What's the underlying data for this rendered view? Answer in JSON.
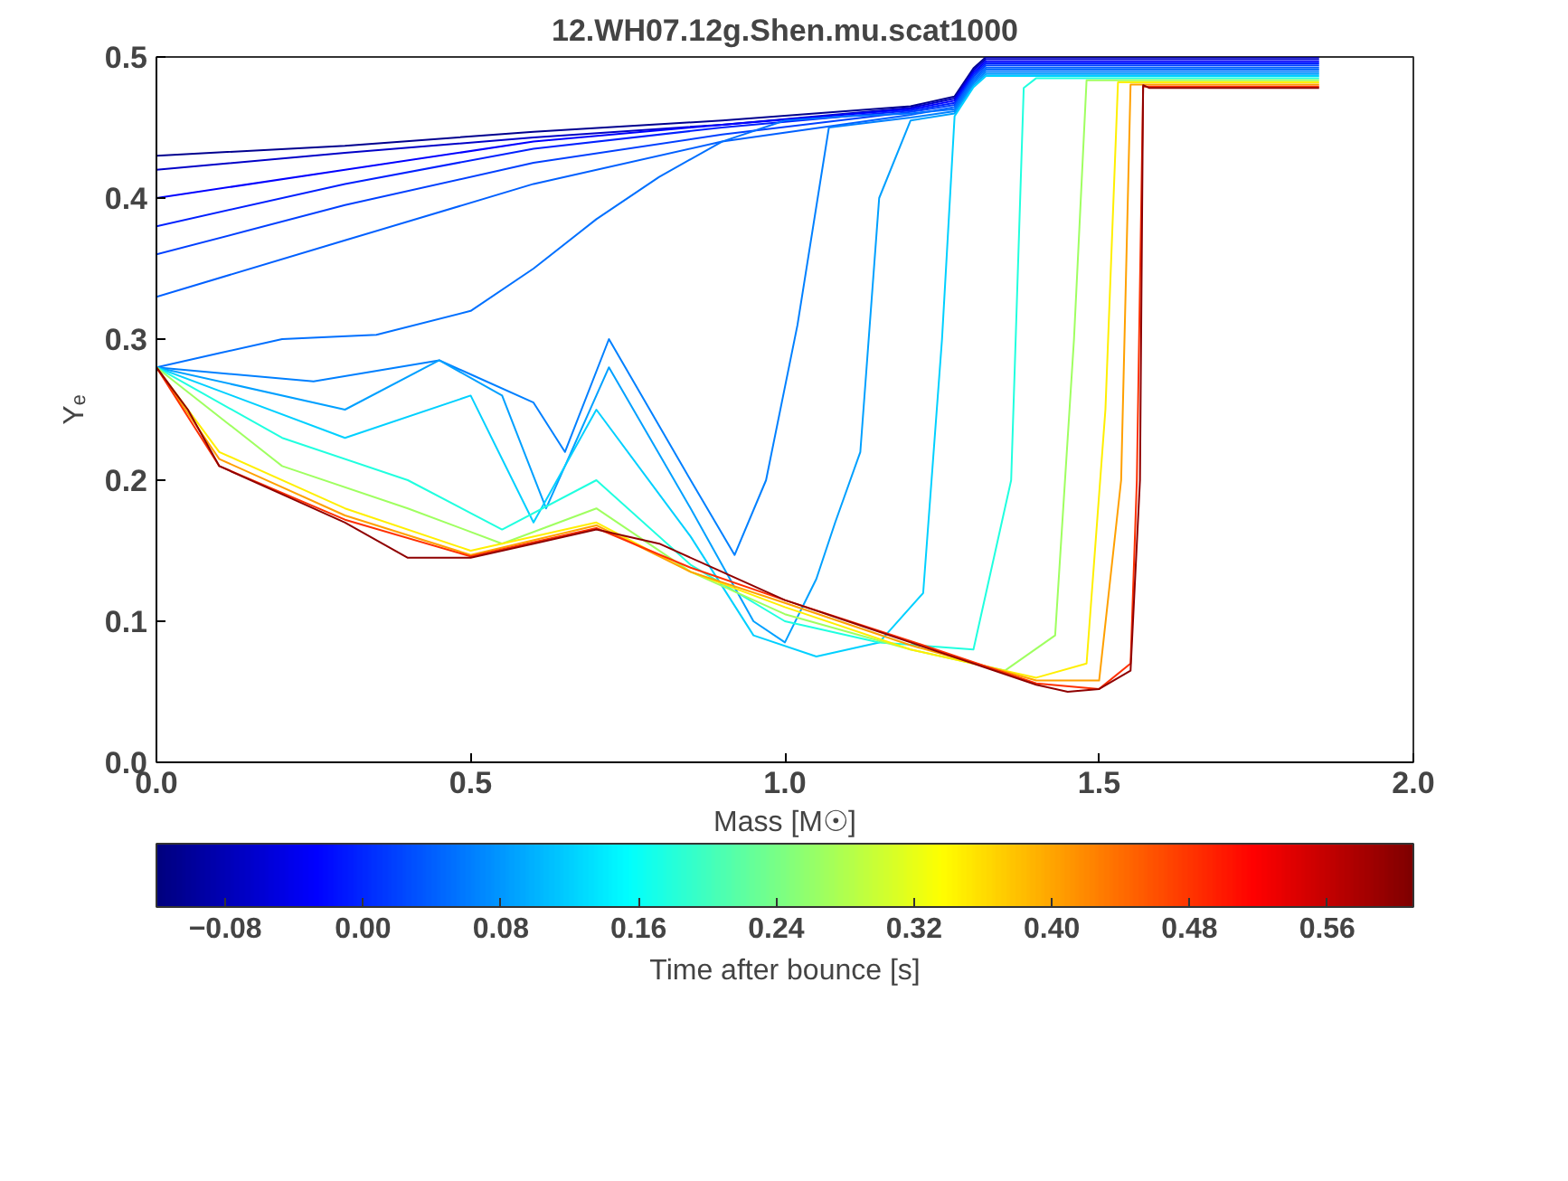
{
  "chart_data": {
    "type": "line",
    "title": "12.WH07.12g.Shen.mu.scat1000",
    "xlabel": "Mass [M☉]",
    "ylabel": "Yₑ",
    "clabel": "Time after bounce [s]",
    "xlim": [
      0,
      2
    ],
    "ylim": [
      0,
      0.5
    ],
    "xticks": [
      {
        "value": 0,
        "label": "0.0"
      },
      {
        "value": 0.5,
        "label": "0.5"
      },
      {
        "value": 1,
        "label": "1.0"
      },
      {
        "value": 1.5,
        "label": "1.5"
      },
      {
        "value": 2,
        "label": "2.0"
      }
    ],
    "yticks": [
      {
        "value": 0,
        "label": "0.0"
      },
      {
        "value": 0.1,
        "label": "0.1"
      },
      {
        "value": 0.2,
        "label": "0.2"
      },
      {
        "value": 0.3,
        "label": "0.3"
      },
      {
        "value": 0.4,
        "label": "0.4"
      },
      {
        "value": 0.5,
        "label": "0.5"
      }
    ],
    "clim": [
      -0.12,
      0.61
    ],
    "cticks": [
      {
        "value": -0.08,
        "label": "−0.08"
      },
      {
        "value": 0,
        "label": "0.00"
      },
      {
        "value": 0.08,
        "label": "0.08"
      },
      {
        "value": 0.16,
        "label": "0.16"
      },
      {
        "value": 0.24,
        "label": "0.24"
      },
      {
        "value": 0.32,
        "label": "0.32"
      },
      {
        "value": 0.4,
        "label": "0.40"
      },
      {
        "value": 0.48,
        "label": "0.48"
      },
      {
        "value": 0.56,
        "label": "0.56"
      }
    ],
    "line_style": "solid",
    "series": [
      {
        "color": "#00008f",
        "x": [
          0,
          0.3,
          0.6,
          0.9,
          1.2,
          1.27,
          1.3,
          1.32,
          1.85
        ],
        "values": [
          0.43,
          0.437,
          0.447,
          0.455,
          0.465,
          0.472,
          0.492,
          0.5,
          0.5
        ]
      },
      {
        "color": "#0000c8",
        "x": [
          0,
          0.3,
          0.6,
          0.9,
          1.2,
          1.27,
          1.3,
          1.32,
          1.85
        ],
        "values": [
          0.42,
          0.432,
          0.443,
          0.452,
          0.464,
          0.4705,
          0.4905,
          0.4985,
          0.4985
        ]
      },
      {
        "color": "#0000ff",
        "x": [
          0,
          0.3,
          0.6,
          0.9,
          1.2,
          1.27,
          1.3,
          1.32,
          1.85
        ],
        "values": [
          0.4,
          0.42,
          0.44,
          0.452,
          0.463,
          0.469,
          0.489,
          0.497,
          0.497
        ]
      },
      {
        "color": "#0020ff",
        "x": [
          0,
          0.3,
          0.6,
          0.9,
          1.2,
          1.27,
          1.3,
          1.32,
          1.85
        ],
        "values": [
          0.38,
          0.41,
          0.435,
          0.45,
          0.462,
          0.4675,
          0.4875,
          0.4955,
          0.4955
        ]
      },
      {
        "color": "#0040ff",
        "x": [
          0,
          0.3,
          0.6,
          0.9,
          1.2,
          1.27,
          1.3,
          1.32,
          1.85
        ],
        "values": [
          0.36,
          0.395,
          0.425,
          0.445,
          0.461,
          0.466,
          0.486,
          0.494,
          0.494
        ]
      },
      {
        "color": "#0060ff",
        "x": [
          0,
          0.3,
          0.6,
          0.9,
          1.2,
          1.27,
          1.3,
          1.32,
          1.85
        ],
        "values": [
          0.33,
          0.37,
          0.41,
          0.44,
          0.459,
          0.4645,
          0.4845,
          0.4925,
          0.4925
        ]
      },
      {
        "color": "#0070ff",
        "x": [
          0,
          0.1,
          0.2,
          0.35,
          0.5,
          0.6,
          0.7,
          0.8,
          0.9,
          1.0,
          1.1,
          1.2,
          1.27,
          1.3,
          1.32,
          1.85
        ],
        "values": [
          0.28,
          0.29,
          0.3,
          0.303,
          0.32,
          0.35,
          0.385,
          0.415,
          0.44,
          0.455,
          0.458,
          0.46,
          0.463,
          0.483,
          0.491,
          0.491
        ]
      },
      {
        "color": "#0080ff",
        "x": [
          0,
          0.25,
          0.45,
          0.5,
          0.6,
          0.65,
          0.72,
          0.85,
          0.92,
          0.97,
          1.02,
          1.07,
          1.2,
          1.27,
          1.3,
          1.32,
          1.85
        ],
        "values": [
          0.28,
          0.27,
          0.285,
          0.275,
          0.255,
          0.22,
          0.3,
          0.2,
          0.147,
          0.2,
          0.31,
          0.45,
          0.457,
          0.4615,
          0.4815,
          0.4895,
          0.4895
        ]
      },
      {
        "color": "#00a0ff",
        "x": [
          0,
          0.3,
          0.45,
          0.55,
          0.62,
          0.72,
          0.85,
          0.95,
          1.0,
          1.05,
          1.08,
          1.12,
          1.15,
          1.2,
          1.27,
          1.3,
          1.32,
          1.85
        ],
        "values": [
          0.28,
          0.25,
          0.285,
          0.26,
          0.18,
          0.28,
          0.18,
          0.1,
          0.085,
          0.13,
          0.17,
          0.22,
          0.4,
          0.455,
          0.46,
          0.48,
          0.488,
          0.488
        ]
      },
      {
        "color": "#00d0ff",
        "x": [
          0,
          0.3,
          0.5,
          0.6,
          0.7,
          0.85,
          0.95,
          1.05,
          1.15,
          1.22,
          1.25,
          1.27,
          1.3,
          1.32,
          1.85
        ],
        "values": [
          0.28,
          0.23,
          0.26,
          0.17,
          0.25,
          0.16,
          0.09,
          0.075,
          0.085,
          0.12,
          0.3,
          0.458,
          0.4785,
          0.4865,
          0.4865
        ]
      },
      {
        "color": "#20ffdf",
        "x": [
          0,
          0.2,
          0.4,
          0.55,
          0.7,
          0.85,
          1.0,
          1.15,
          1.3,
          1.36,
          1.38,
          1.4,
          1.85
        ],
        "values": [
          0.28,
          0.23,
          0.2,
          0.165,
          0.2,
          0.14,
          0.1,
          0.085,
          0.08,
          0.2,
          0.478,
          0.485,
          0.485
        ]
      },
      {
        "color": "#9fff60",
        "x": [
          0,
          0.2,
          0.4,
          0.55,
          0.7,
          0.85,
          1.0,
          1.2,
          1.35,
          1.43,
          1.46,
          1.48,
          1.85
        ],
        "values": [
          0.28,
          0.21,
          0.18,
          0.155,
          0.18,
          0.135,
          0.105,
          0.08,
          0.065,
          0.09,
          0.3,
          0.4835,
          0.4835
        ]
      },
      {
        "color": "#ffef00",
        "x": [
          0,
          0.1,
          0.3,
          0.5,
          0.7,
          0.85,
          1.0,
          1.2,
          1.4,
          1.48,
          1.51,
          1.53,
          1.85
        ],
        "values": [
          0.28,
          0.22,
          0.18,
          0.15,
          0.17,
          0.135,
          0.11,
          0.08,
          0.06,
          0.07,
          0.25,
          0.482,
          0.482
        ]
      },
      {
        "color": "#ffa000",
        "x": [
          0,
          0.1,
          0.3,
          0.5,
          0.7,
          0.85,
          1.0,
          1.2,
          1.4,
          1.5,
          1.535,
          1.55,
          1.85
        ],
        "values": [
          0.28,
          0.215,
          0.175,
          0.147,
          0.168,
          0.135,
          0.113,
          0.083,
          0.058,
          0.058,
          0.2,
          0.4805,
          0.4805
        ]
      },
      {
        "color": "#ff3000",
        "x": [
          0,
          0.1,
          0.3,
          0.5,
          0.7,
          0.85,
          1.0,
          1.2,
          1.4,
          1.5,
          1.55,
          1.56,
          1.57,
          1.85
        ],
        "values": [
          0.28,
          0.21,
          0.172,
          0.146,
          0.166,
          0.138,
          0.115,
          0.086,
          0.056,
          0.052,
          0.07,
          0.2,
          0.479,
          0.479
        ]
      },
      {
        "color": "#8f0000",
        "x": [
          0,
          0.05,
          0.1,
          0.2,
          0.3,
          0.4,
          0.5,
          0.55,
          0.6,
          0.7,
          0.8,
          0.9,
          1.0,
          1.1,
          1.2,
          1.3,
          1.4,
          1.45,
          1.5,
          1.55,
          1.565,
          1.57,
          1.58,
          1.85
        ],
        "values": [
          0.28,
          0.25,
          0.21,
          0.19,
          0.17,
          0.145,
          0.145,
          0.15,
          0.155,
          0.165,
          0.155,
          0.135,
          0.115,
          0.1,
          0.085,
          0.07,
          0.055,
          0.05,
          0.052,
          0.065,
          0.2,
          0.48,
          0.478,
          0.478
        ]
      }
    ]
  }
}
